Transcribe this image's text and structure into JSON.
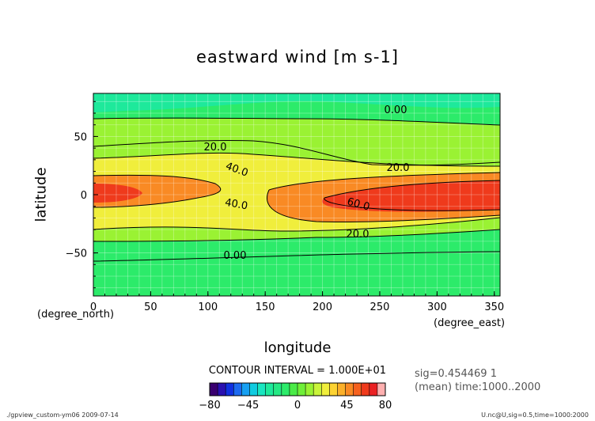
{
  "chart_data": {
    "type": "heatmap",
    "title": "eastward wind [m s-1]",
    "xlabel": "longitude",
    "ylabel": "latitude",
    "x_unit": "(degree_east)",
    "y_unit": "(degree_north)",
    "xlim": [
      0,
      355
    ],
    "ylim": [
      -87,
      87
    ],
    "x_ticks": [
      "0",
      "50",
      "100",
      "150",
      "200",
      "250",
      "300",
      "350"
    ],
    "y_ticks": [
      "50",
      "0",
      "−50"
    ],
    "contour_interval_label": "CONTOUR INTERVAL = 1.000E+01",
    "contour_labels": [
      "0.00",
      "20.0",
      "20.0",
      "40.0",
      "40.0",
      "60.0",
      "20.0",
      "0.00"
    ],
    "colorbar": {
      "min": -80,
      "max": 80,
      "tick_labels": [
        "−80",
        "−45",
        "0",
        "45",
        "80"
      ],
      "colors": [
        "#3a0070",
        "#2a10b0",
        "#1030e0",
        "#1d6af0",
        "#17a0f2",
        "#10cbe0",
        "#19e6c0",
        "#1ee99b",
        "#25e884",
        "#2ceb6a",
        "#4aeb47",
        "#6fef38",
        "#9af233",
        "#c9f43a",
        "#f0ee3c",
        "#fdd332",
        "#fbb02a",
        "#f98a24",
        "#f5611e",
        "#ef3a1c",
        "#ea2123",
        "#ffb0b0"
      ]
    },
    "annotations": [
      "sig=0.454469 1",
      "(mean) time:1000..2000"
    ],
    "zonal_bands": [
      {
        "lat": [
          60,
          87
        ],
        "value": 2
      },
      {
        "lat": [
          40,
          60
        ],
        "value": 15
      },
      {
        "lat": [
          25,
          40
        ],
        "value": 22
      },
      {
        "lat": [
          12,
          25
        ],
        "value": 35
      },
      {
        "lat": [
          -12,
          12
        ],
        "value": 50
      },
      {
        "lat": [
          -25,
          -12
        ],
        "value": 35
      },
      {
        "lat": [
          -40,
          -25
        ],
        "value": 22
      },
      {
        "lat": [
          -55,
          -40
        ],
        "value": 12
      },
      {
        "lat": [
          -87,
          -55
        ],
        "value": 2
      }
    ],
    "jet_cores": [
      {
        "lon": [
          0,
          60
        ],
        "lat": [
          -3,
          5
        ],
        "value": 65
      },
      {
        "lon": [
          220,
          355
        ],
        "lat": [
          -5,
          6
        ],
        "value": 68
      }
    ],
    "grid": true
  },
  "footer": {
    "left": "./gpview_custom-ym06  2009-07-14",
    "right": "U.nc@U,sig=0.5,time=1000:2000"
  }
}
